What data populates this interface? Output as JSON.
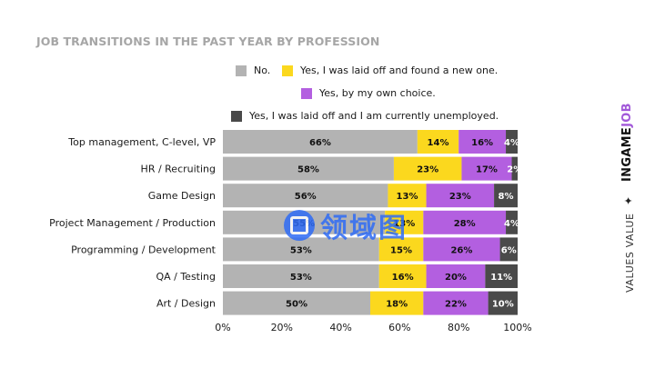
{
  "chart_data": {
    "type": "bar",
    "orientation": "horizontal",
    "stacked": true,
    "title": "JOB TRANSITIONS IN THE PAST YEAR BY PROFESSION",
    "categories": [
      "Top management, C-level, VP",
      "HR / Recruiting",
      "Game Design",
      "Project Management / Production",
      "Programming / Development",
      "QA / Testing",
      "Art / Design"
    ],
    "series": [
      {
        "name": "No.",
        "color": "#b3b3b3",
        "values": [
          66,
          58,
          56,
          55,
          53,
          53,
          50
        ]
      },
      {
        "name": "Yes, I was laid off and found a new one.",
        "color": "#fbd81e",
        "values": [
          14,
          23,
          13,
          13,
          15,
          16,
          18
        ]
      },
      {
        "name": "Yes, by my own choice.",
        "color": "#b35fe0",
        "values": [
          16,
          17,
          23,
          28,
          26,
          20,
          22
        ]
      },
      {
        "name": "Yes, I was laid off and I am currently unemployed.",
        "color": "#4a4a4a",
        "values": [
          4,
          2,
          8,
          4,
          6,
          11,
          10
        ]
      }
    ],
    "data_labels": [
      [
        "66%",
        "14%",
        "16%",
        "4%"
      ],
      [
        "58%",
        "23%",
        "17%",
        "2%"
      ],
      [
        "56%",
        "13%",
        "23%",
        "8%"
      ],
      [
        "55%",
        "13%",
        "28%",
        "4%"
      ],
      [
        "53%",
        "15%",
        "26%",
        "6%"
      ],
      [
        "53%",
        "16%",
        "20%",
        "11%"
      ],
      [
        "50%",
        "18%",
        "22%",
        "10%"
      ]
    ],
    "xlim": [
      0,
      100
    ],
    "xticks": [
      "0%",
      "20%",
      "40%",
      "60%",
      "80%",
      "100%"
    ],
    "grid": false,
    "legend_position": "top"
  },
  "branding": {
    "values_text": "VALUES VALUE",
    "separator": "✦",
    "logo_main": "INGAME",
    "logo_accent": "JOB"
  },
  "watermark": {
    "text": "领域图"
  }
}
